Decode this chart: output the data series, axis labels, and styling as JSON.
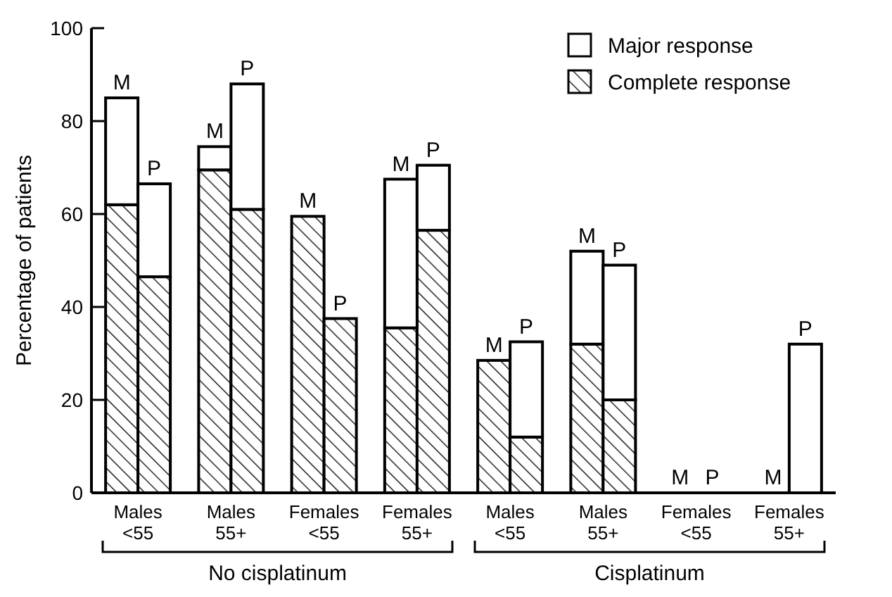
{
  "chart_data": {
    "type": "bar",
    "stacked": true,
    "ylabel": "Percentage of patients",
    "categories": [
      null,
      null,
      null,
      null,
      null,
      null,
      null,
      null,
      null,
      null,
      null,
      null,
      null,
      null,
      null,
      null
    ],
    "series": [
      {
        "name": "Complete response",
        "color": "#000000",
        "values": [
          62,
          46.5,
          69.5,
          61,
          59.5,
          37.5,
          35.5,
          56.5,
          28.5,
          12,
          32,
          20,
          0,
          0,
          0,
          0
        ]
      },
      {
        "name": "Major response",
        "color": "#ffffff",
        "values": [
          23,
          20,
          5,
          27,
          0,
          0,
          32,
          14,
          0,
          20.5,
          20,
          29,
          0,
          0,
          0,
          32
        ]
      }
    ],
    "ylim": [
      0,
      100
    ],
    "yticks": [
      0,
      20,
      40,
      60,
      80,
      100
    ],
    "legend": "top right",
    "annotations": [
      "M",
      "P",
      "M",
      "P",
      "M",
      "P",
      "M",
      "P",
      "M",
      "P",
      "M",
      "P",
      "M",
      "P",
      "M",
      "P",
      "Males\n<55",
      "Males\n55+",
      "Females\n<55",
      "Females\n55+",
      "Males\n<55",
      "Males\n55+",
      "Females\n<55",
      "Females\n55+",
      "No cisplatinum",
      "Cisplatinum"
    ]
  }
}
